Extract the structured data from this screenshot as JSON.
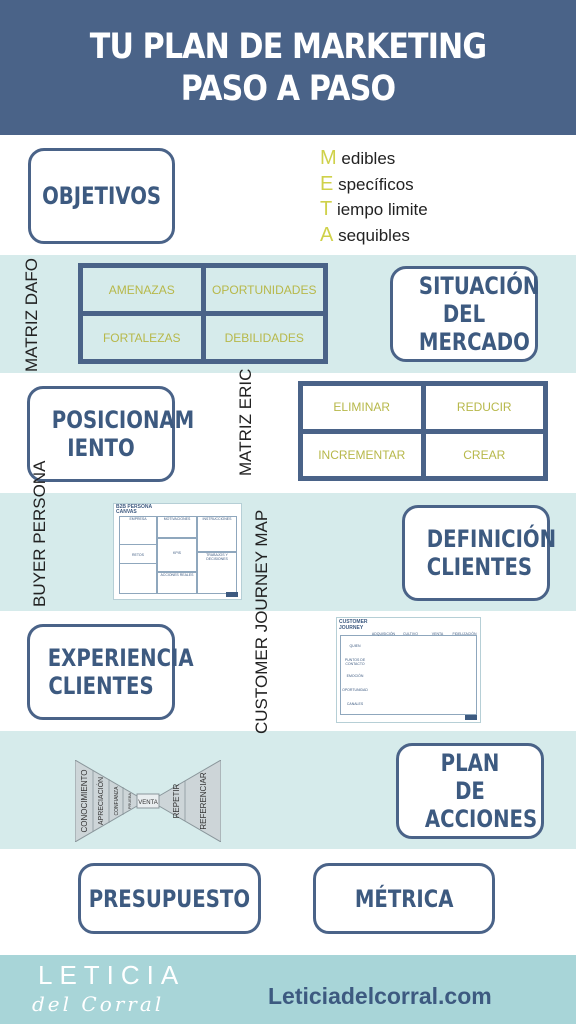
{
  "header": {
    "title": "TU PLAN DE MARKETING PASO A PASO"
  },
  "steps": {
    "objetivos": "OBJETIVOS",
    "situacion": "SITUACIÓN DEL MERCADO",
    "posicionamiento": "POSICIONAM IENTO",
    "definicion": "DEFINICIÓN CLIENTES",
    "experiencia": "EXPERIENCIA CLIENTES",
    "plan": "PLAN DE ACCIONES",
    "presupuesto": "PRESUPUESTO",
    "metrica": "MÉTRICA"
  },
  "meta": [
    {
      "letter": "M",
      "rest": "edibles"
    },
    {
      "letter": "E",
      "rest": "specíficos"
    },
    {
      "letter": "T",
      "rest": "iempo limite"
    },
    {
      "letter": "A",
      "rest": "sequibles"
    }
  ],
  "dafo": {
    "label": "MATRIZ DAFO",
    "cells": [
      "AMENAZAS",
      "OPORTUNIDADES",
      "FORTALEZAS",
      "DEBILIDADES"
    ]
  },
  "eric": {
    "label": "MATRIZ ERIC",
    "cells": [
      "ELIMINAR",
      "REDUCIR",
      "INCREMENTAR",
      "CREAR"
    ]
  },
  "buyer": {
    "label": "BUYER PERSONA",
    "title": "B2B PERSONA CANVAS",
    "cells": [
      "EMPRESA",
      "MOTIVACIONES",
      "INSTRUCCIONES",
      "RETOS",
      "KPIS",
      "TRABAJOS Y DECISIONES",
      "ACCIONES REALES"
    ]
  },
  "journey": {
    "label": "CUSTOMER JOURNEY MAP",
    "title": "CUSTOMER JOURNEY",
    "columns": [
      "ADQUISICIÓN",
      "CULTIVO",
      "VENTA",
      "FIDELIZACIÓN"
    ],
    "rows": [
      "QUIEN",
      "PUNTOS DE CONTACTO",
      "EMOCIÓN",
      "OPORTUNIDAD",
      "CANALES"
    ]
  },
  "bowtie": {
    "left": [
      "CONOCIMIENTO",
      "APRECIACIÓN",
      "CONFIANZA",
      "PRUEBA"
    ],
    "center": "VENTA",
    "right": [
      "REPETIR",
      "REFERENCIAR"
    ]
  },
  "footer": {
    "logo_line1": "LETICIA",
    "logo_line2": "del Corral",
    "website": "Leticiadelcorral.com"
  }
}
